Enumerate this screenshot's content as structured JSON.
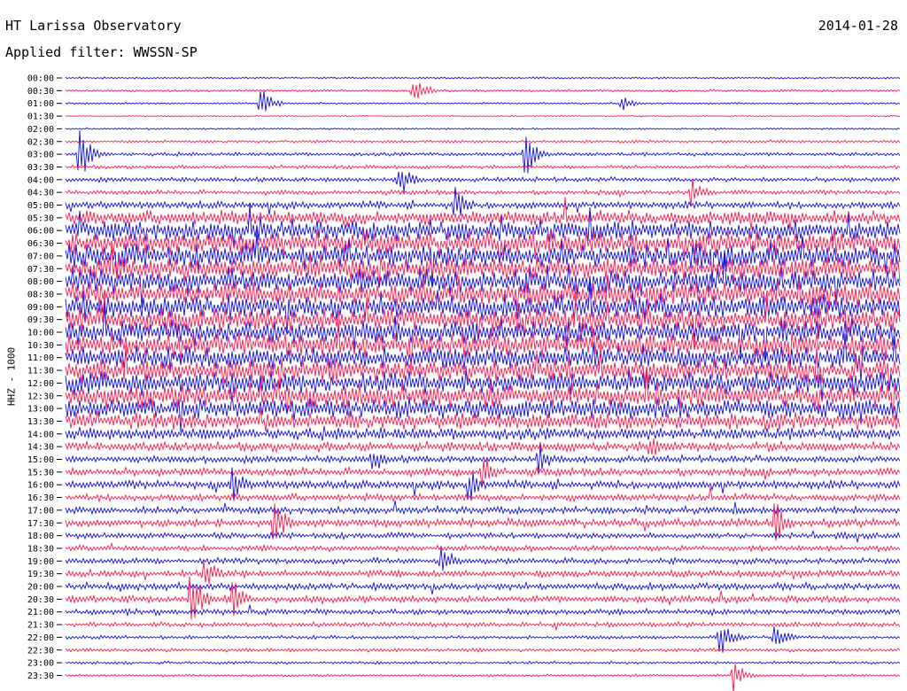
{
  "header": {
    "station": "HT Larissa Observatory",
    "date": "2014-01-28",
    "filter": "Applied filter: WWSSN-SP"
  },
  "channel_label": "HHZ - 1000",
  "colors": {
    "even_rows": "#1010e0",
    "odd_rows": "#ff1a4b"
  },
  "chart_data": {
    "type": "line",
    "title": "HT Larissa Observatory",
    "subtitle": "Applied filter: WWSSN-SP",
    "ylabel": "HHZ - 1000",
    "row_labels": [
      "00:00",
      "00:30",
      "01:00",
      "01:30",
      "02:00",
      "02:30",
      "03:00",
      "03:30",
      "04:00",
      "04:30",
      "05:00",
      "05:30",
      "06:00",
      "06:30",
      "07:00",
      "07:30",
      "08:00",
      "08:30",
      "09:00",
      "09:30",
      "10:00",
      "10:30",
      "11:00",
      "11:30",
      "12:00",
      "12:30",
      "13:00",
      "13:30",
      "14:00",
      "14:30",
      "15:00",
      "15:30",
      "16:00",
      "16:30",
      "17:00",
      "17:30",
      "18:00",
      "18:30",
      "19:00",
      "19:30",
      "20:00",
      "20:30",
      "21:00",
      "21:30",
      "22:00",
      "22:30",
      "23:00",
      "23:30"
    ],
    "row_noise_level": [
      0.08,
      0.1,
      0.08,
      0.05,
      0.08,
      0.12,
      0.15,
      0.15,
      0.2,
      0.2,
      0.3,
      0.6,
      0.85,
      0.95,
      1.0,
      1.0,
      1.0,
      1.0,
      1.0,
      1.0,
      1.0,
      0.95,
      0.95,
      0.95,
      0.95,
      0.95,
      0.9,
      0.7,
      0.5,
      0.4,
      0.3,
      0.35,
      0.35,
      0.3,
      0.3,
      0.35,
      0.25,
      0.25,
      0.25,
      0.3,
      0.3,
      0.3,
      0.25,
      0.2,
      0.15,
      0.15,
      0.12,
      0.1
    ],
    "events": [
      {
        "row": 1,
        "minute": 12.5,
        "amp": 0.9
      },
      {
        "row": 2,
        "minute": 7.0,
        "amp": 0.8
      },
      {
        "row": 2,
        "minute": 20.0,
        "amp": 0.4
      },
      {
        "row": 6,
        "minute": 0.5,
        "amp": 1.3
      },
      {
        "row": 6,
        "minute": 16.5,
        "amp": 1.3
      },
      {
        "row": 8,
        "minute": 12.0,
        "amp": 0.9
      },
      {
        "row": 9,
        "minute": 22.5,
        "amp": 0.8
      },
      {
        "row": 10,
        "minute": 14.0,
        "amp": 0.9
      },
      {
        "row": 29,
        "minute": 21.0,
        "amp": 0.8
      },
      {
        "row": 30,
        "minute": 11.0,
        "amp": 0.9
      },
      {
        "row": 30,
        "minute": 17.0,
        "amp": 0.8
      },
      {
        "row": 31,
        "minute": 15.0,
        "amp": 1.0
      },
      {
        "row": 32,
        "minute": 6.0,
        "amp": 1.0
      },
      {
        "row": 32,
        "minute": 14.5,
        "amp": 0.9
      },
      {
        "row": 35,
        "minute": 7.5,
        "amp": 1.3
      },
      {
        "row": 35,
        "minute": 25.5,
        "amp": 1.1
      },
      {
        "row": 38,
        "minute": 13.5,
        "amp": 1.0
      },
      {
        "row": 39,
        "minute": 5.0,
        "amp": 1.0
      },
      {
        "row": 41,
        "minute": 4.5,
        "amp": 1.5
      },
      {
        "row": 41,
        "minute": 6.0,
        "amp": 1.0
      },
      {
        "row": 44,
        "minute": 23.5,
        "amp": 1.0
      },
      {
        "row": 44,
        "minute": 25.5,
        "amp": 0.7
      },
      {
        "row": 47,
        "minute": 24.0,
        "amp": 0.8
      }
    ],
    "xlim": [
      0,
      30
    ],
    "grid": false,
    "legend": "none"
  }
}
